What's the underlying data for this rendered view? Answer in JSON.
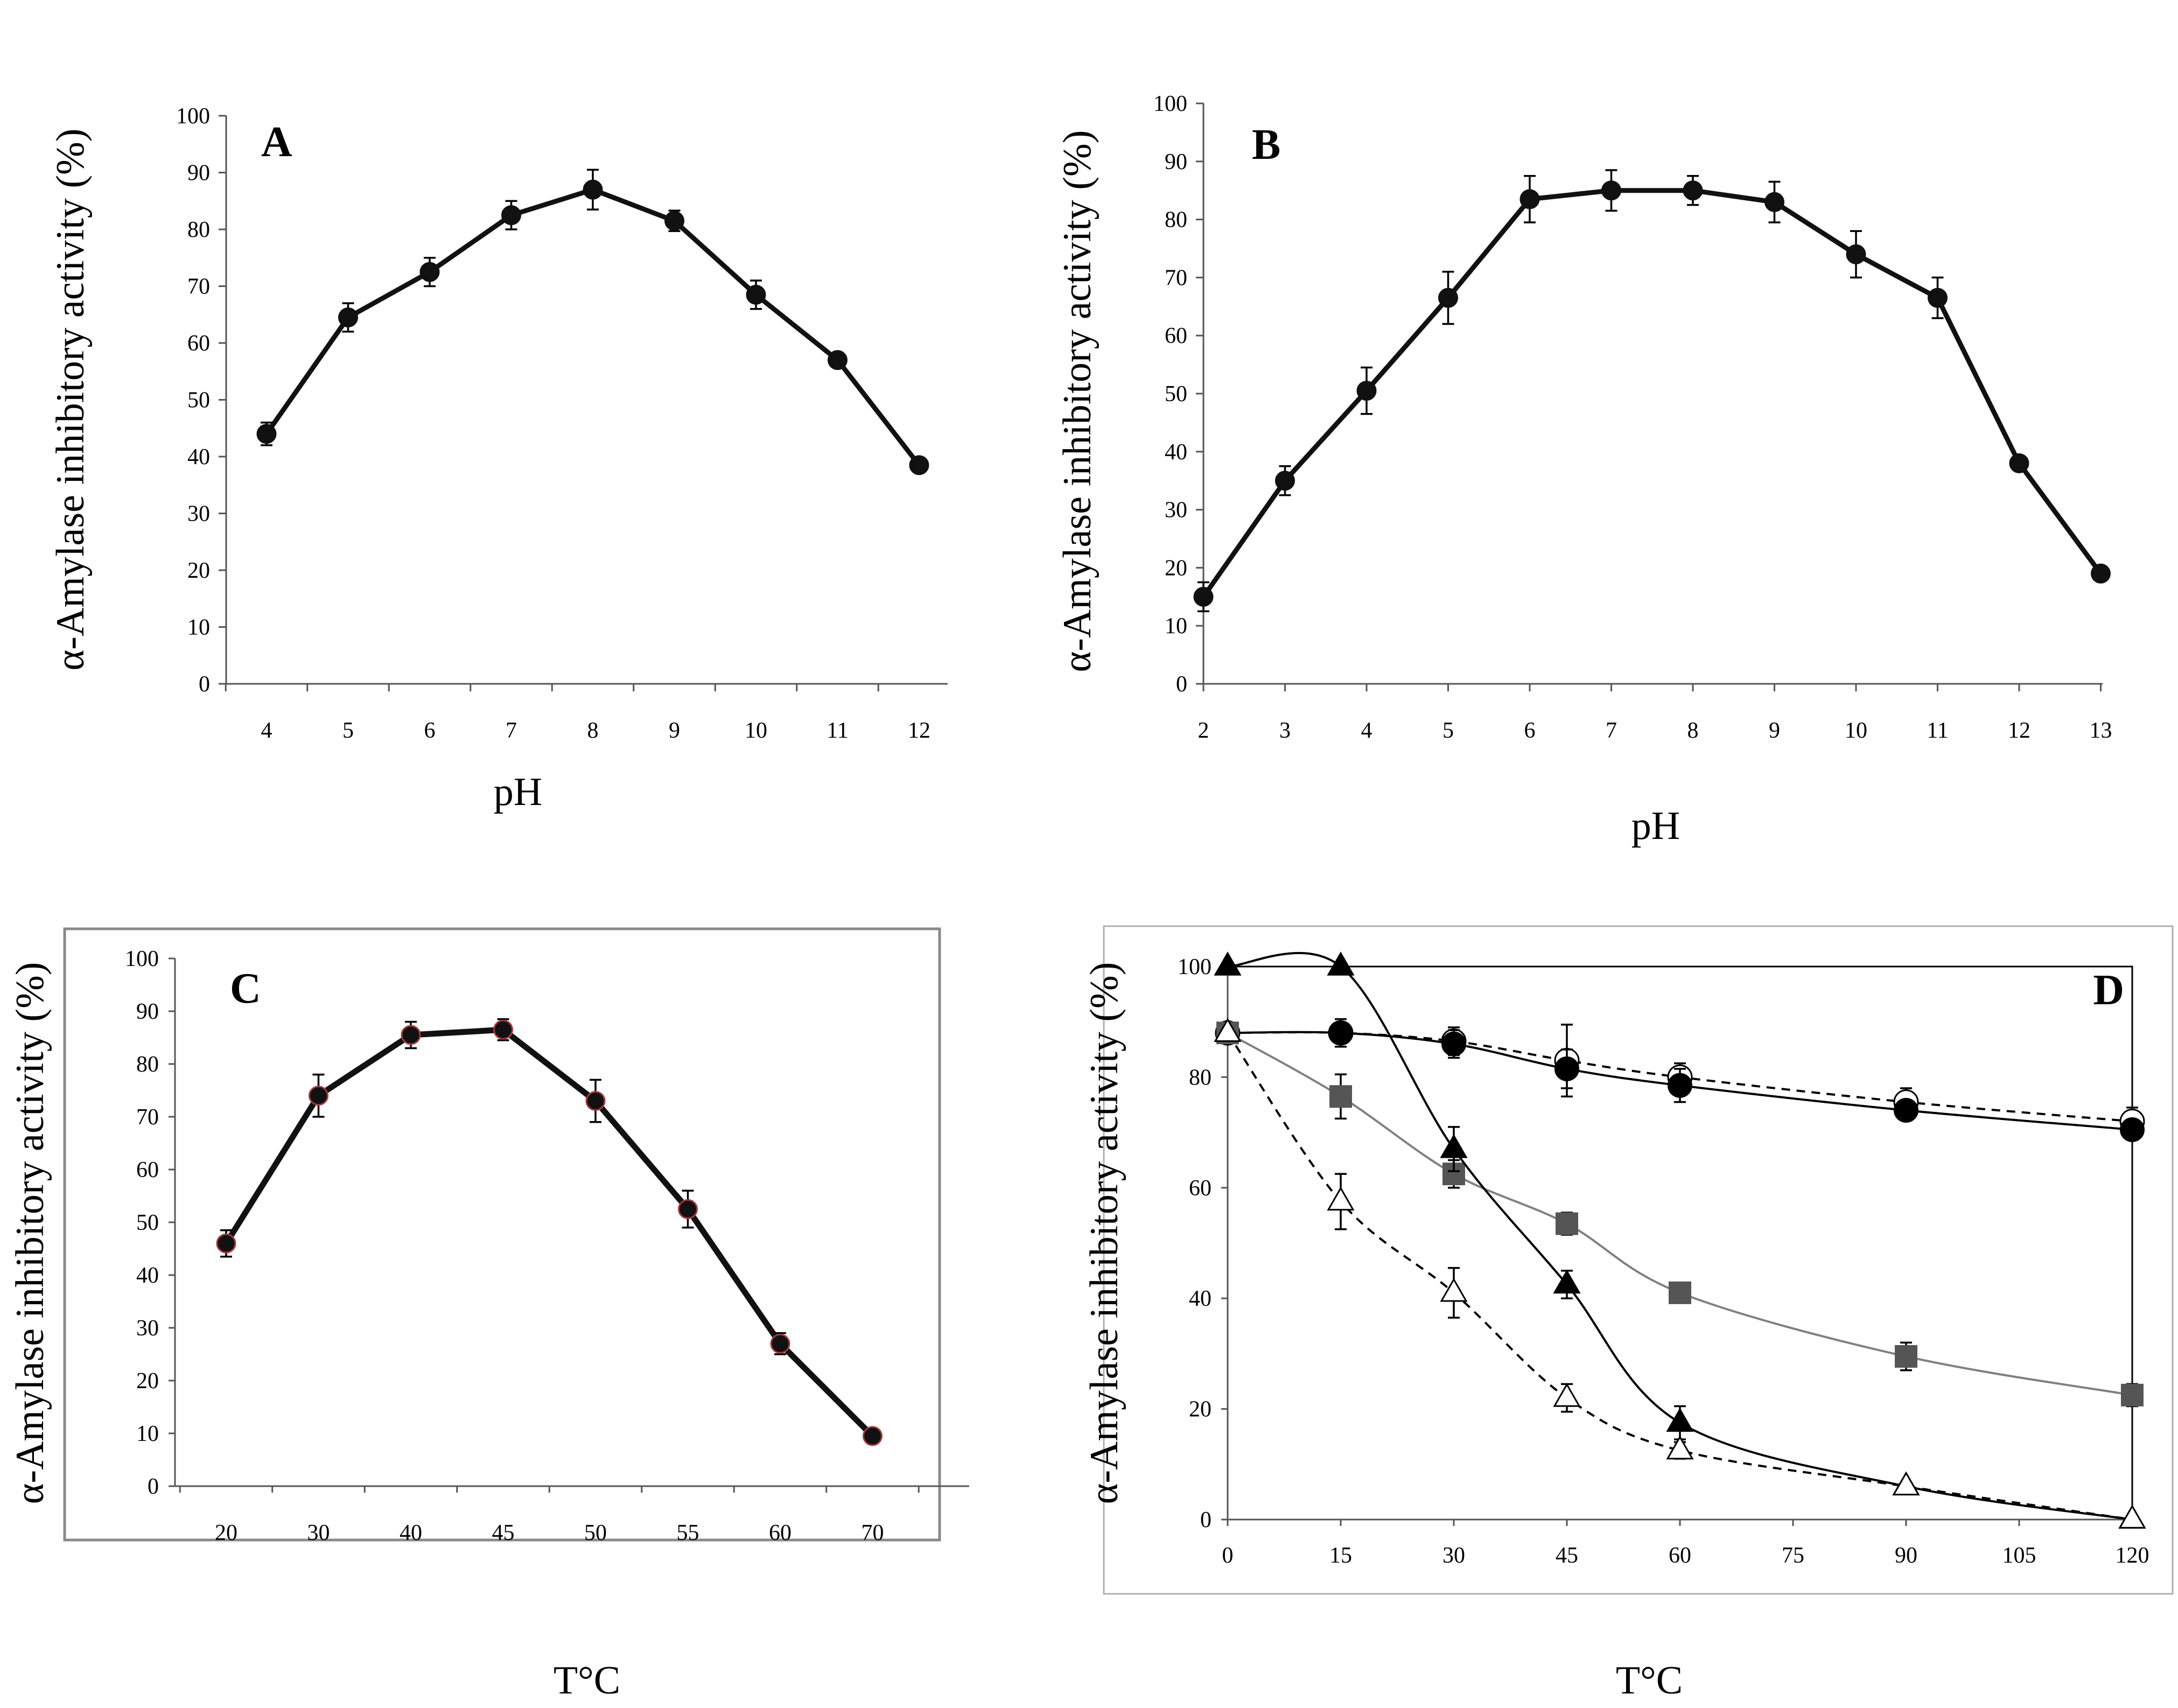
{
  "chart_data": [
    {
      "id": "A",
      "type": "line",
      "panel_label": "A",
      "title": "",
      "xlabel": "pH",
      "ylabel": "α-Amylase inhibitory activity (%)",
      "categories": [
        "4",
        "5",
        "6",
        "7",
        "8",
        "9",
        "10",
        "11",
        "12"
      ],
      "yticks": [
        "0",
        "10",
        "20",
        "30",
        "40",
        "50",
        "60",
        "70",
        "80",
        "90",
        "100"
      ],
      "ylim": [
        0,
        100
      ],
      "grid": false,
      "framed": false,
      "series": [
        {
          "name": "inhibitory activity",
          "values": [
            44,
            64.5,
            72.5,
            82.5,
            87,
            81.5,
            68.5,
            57,
            38.5
          ],
          "errors": [
            2,
            2.5,
            2.5,
            2.5,
            3.5,
            1.8,
            2.5,
            1.2,
            1
          ]
        }
      ]
    },
    {
      "id": "B",
      "type": "line",
      "panel_label": "B",
      "title": "",
      "xlabel": "pH",
      "ylabel": "α-Amylase inhibitory activity (%)",
      "categories": [
        "2",
        "3",
        "4",
        "5",
        "6",
        "7",
        "8",
        "9",
        "10",
        "11",
        "12",
        "13"
      ],
      "yticks": [
        "0",
        "10",
        "20",
        "30",
        "40",
        "50",
        "60",
        "70",
        "80",
        "90",
        "100"
      ],
      "ylim": [
        0,
        100
      ],
      "grid": false,
      "framed": false,
      "series": [
        {
          "name": "inhibitory activity",
          "values": [
            15,
            35,
            50.5,
            66.5,
            83.5,
            85,
            85,
            83,
            74,
            66.5,
            38,
            19
          ],
          "errors": [
            2.5,
            2.5,
            4,
            4.5,
            4,
            3.5,
            2.5,
            3.5,
            4,
            3.5,
            0.5,
            0.5
          ]
        }
      ]
    },
    {
      "id": "C",
      "type": "line",
      "panel_label": "C",
      "title": "",
      "xlabel": "T°C",
      "ylabel": "α-Amylase inhibitory activity (%)",
      "categories": [
        "20",
        "30",
        "40",
        "45",
        "50",
        "55",
        "60",
        "70"
      ],
      "yticks": [
        "0",
        "10",
        "20",
        "30",
        "40",
        "50",
        "60",
        "70",
        "80",
        "90",
        "100"
      ],
      "ylim": [
        0,
        100
      ],
      "grid": false,
      "framed": true,
      "series": [
        {
          "name": "inhibitory activity",
          "values": [
            46,
            74,
            85.5,
            86.5,
            73,
            52.5,
            27,
            9.5
          ],
          "errors": [
            2.5,
            4,
            2.5,
            2,
            4,
            3.5,
            2,
            0.5
          ]
        }
      ]
    },
    {
      "id": "D",
      "type": "line",
      "panel_label": "D",
      "title": "",
      "xlabel": "T°C",
      "ylabel": "α-Amylase inhibitory activity (%)",
      "xticks": [
        "0",
        "15",
        "30",
        "45",
        "60",
        "75",
        "90",
        "105",
        "120"
      ],
      "xlim": [
        0,
        120
      ],
      "yticks": [
        "0",
        "20",
        "40",
        "60",
        "80",
        "100"
      ],
      "ylim": [
        0,
        100
      ],
      "grid": false,
      "framed": true,
      "series": [
        {
          "name": "open circles",
          "marker": "circle-open",
          "line": "dashed",
          "color": "#000000",
          "x": [
            0,
            15,
            30,
            45,
            60,
            90,
            120
          ],
          "values": [
            88,
            88,
            86.5,
            83,
            80,
            75.5,
            72
          ],
          "errors": [
            0,
            1.5,
            2.5,
            6.5,
            2.5,
            2.5,
            2.5
          ]
        },
        {
          "name": "filled circles",
          "marker": "circle-filled",
          "line": "solid",
          "color": "#000000",
          "x": [
            0,
            15,
            30,
            45,
            60,
            90,
            120
          ],
          "values": [
            88,
            88,
            86,
            81.5,
            78.5,
            74,
            70.5
          ],
          "errors": [
            0,
            2.5,
            2.5,
            3.5,
            3,
            1.5,
            1
          ]
        },
        {
          "name": "filled squares",
          "marker": "square-filled",
          "line": "solid",
          "color": "#808080",
          "markerColor": "#555555",
          "x": [
            0,
            15,
            30,
            45,
            60,
            90,
            120
          ],
          "values": [
            88,
            76.5,
            62.5,
            53.5,
            41,
            29.5,
            22.5
          ],
          "errors": [
            0,
            4,
            2.5,
            2,
            1.5,
            2.5,
            2
          ]
        },
        {
          "name": "filled triangles",
          "marker": "triangle-filled",
          "line": "solid",
          "color": "#000000",
          "x": [
            0,
            15,
            30,
            45,
            60,
            90,
            120
          ],
          "values": [
            100,
            100,
            67,
            42.5,
            17.5,
            6,
            0
          ],
          "errors": [
            0,
            0,
            4,
            2.5,
            3,
            0,
            0
          ]
        },
        {
          "name": "open triangles",
          "marker": "triangle-open",
          "line": "dashed",
          "color": "#000000",
          "x": [
            0,
            15,
            30,
            45,
            60,
            90,
            120
          ],
          "values": [
            88,
            57.5,
            41,
            22,
            12.5,
            6,
            0
          ],
          "errors": [
            0,
            5,
            4.5,
            2.5,
            1.5,
            0,
            0
          ]
        }
      ]
    }
  ]
}
